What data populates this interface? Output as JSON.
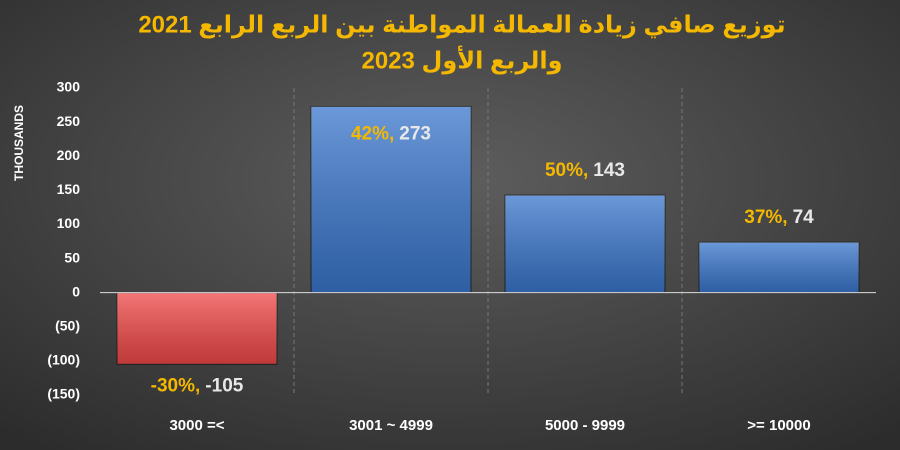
{
  "chart_data": {
    "type": "bar",
    "title": [
      "توزيع صافي زيادة العمالة المواطنة بين الربع الرابع 2021",
      "والربع الأول 2023"
    ],
    "y_label": "THOUSANDS",
    "categories": [
      "3000 =<",
      "3001 ~ 4999",
      "5000 - 9999",
      ">= 10000"
    ],
    "values": [
      -105,
      273,
      143,
      74
    ],
    "share_labels": [
      "-30%,",
      "42%,",
      "50%,",
      "37%,"
    ],
    "colors": [
      "#f04848",
      "#3a76cc",
      "#3a76cc",
      "#3a76cc"
    ],
    "ylim": [
      -150,
      300
    ],
    "yticks": [
      300,
      250,
      200,
      150,
      100,
      50,
      0,
      {
        "value": -50,
        "label": "(50)"
      },
      {
        "value": -100,
        "label": "(100)"
      },
      {
        "value": -150,
        "label": "(150)"
      }
    ],
    "grid": "vertical-dashed"
  }
}
